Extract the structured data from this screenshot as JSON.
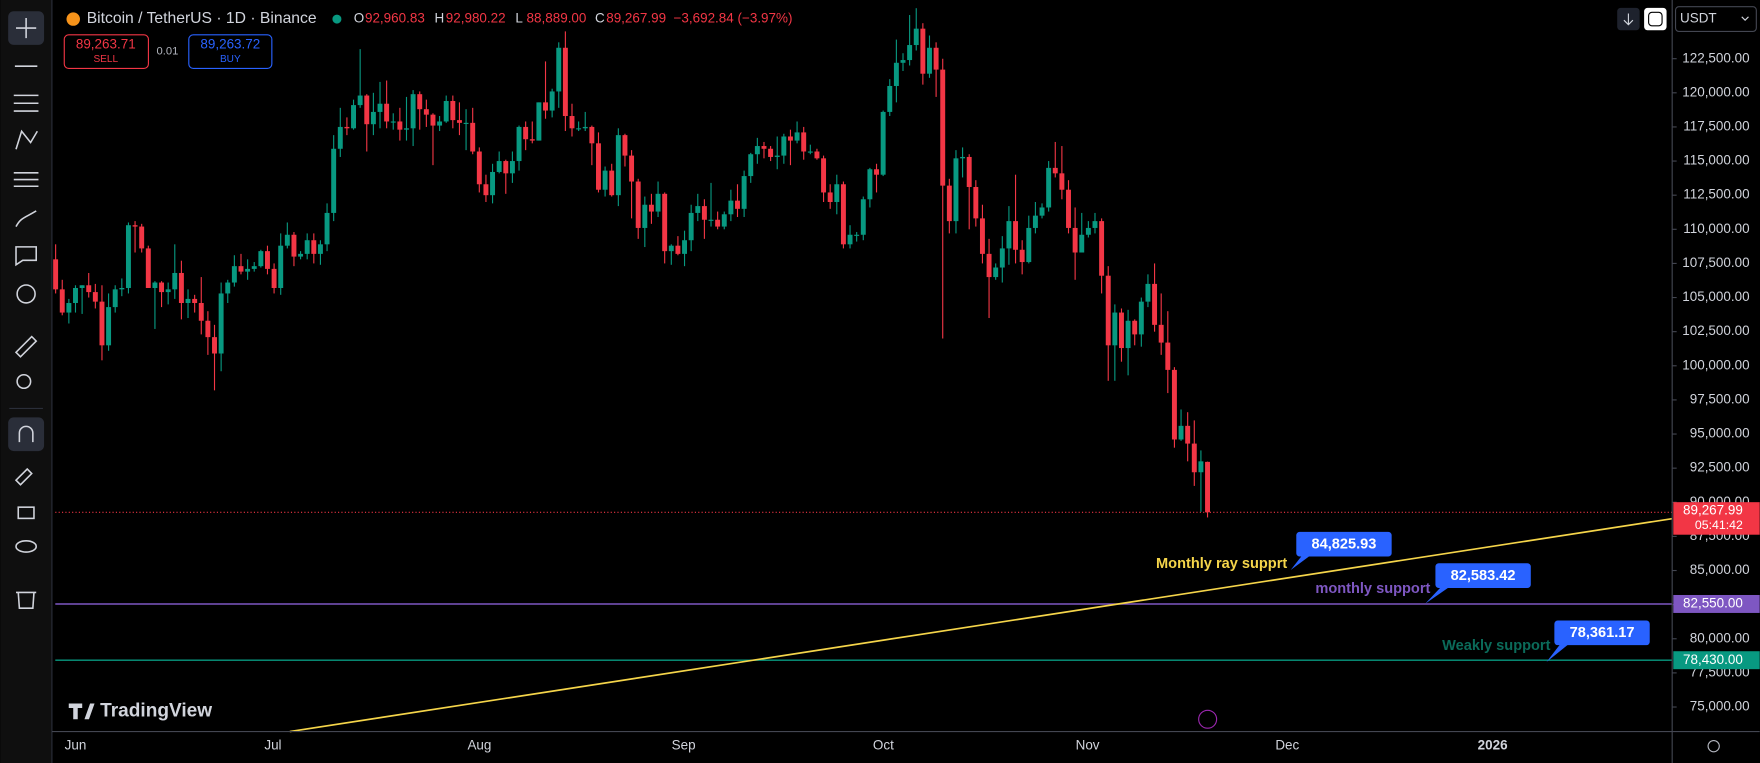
{
  "header": {
    "symbol": "Bitcoin / TetherUS · 1D · Binance",
    "ohlc": [
      {
        "key": "O",
        "value": "92,960.83"
      },
      {
        "key": "H",
        "value": "92,980.22"
      },
      {
        "key": "L",
        "value": "88,889.00"
      },
      {
        "key": "C",
        "value": "89,267.99"
      }
    ],
    "change": "−3,692.84 (−3.97%)",
    "sell_price": "89,263.71",
    "sell": "SELL",
    "spread": "0.01",
    "buy_price": "89,263.72",
    "buy": "BUY",
    "currency": "USDT",
    "logo": "TradingView"
  },
  "chart_data": {
    "type": "candlestick",
    "up_color": "#089981",
    "down_color": "#f23645",
    "x_labels": [
      "Jun",
      "Jul",
      "Aug",
      "Sep",
      "Oct",
      "Nov",
      "Dec",
      "2026"
    ],
    "ylim": [
      73200,
      126800
    ],
    "yticks": [
      {
        "value": 75000,
        "label": "75,000.00"
      },
      {
        "value": 77500,
        "label": "77,500.00"
      },
      {
        "value": 80000,
        "label": "80,000.00"
      },
      {
        "value": 82500,
        "label": "82,500.00"
      },
      {
        "value": 85000,
        "label": "85,000.00"
      },
      {
        "value": 87500,
        "label": "87,500.00"
      },
      {
        "value": 90000,
        "label": "90,000.00"
      },
      {
        "value": 92500,
        "label": "92,500.00"
      },
      {
        "value": 95000,
        "label": "95,000.00"
      },
      {
        "value": 97500,
        "label": "97,500.00"
      },
      {
        "value": 100000,
        "label": "100,000.00"
      },
      {
        "value": 102500,
        "label": "102,500.00"
      },
      {
        "value": 105000,
        "label": "105,000.00"
      },
      {
        "value": 107500,
        "label": "107,500.00"
      },
      {
        "value": 110000,
        "label": "110,000.00"
      },
      {
        "value": 112500,
        "label": "112,500.00"
      },
      {
        "value": 115000,
        "label": "115,000.00"
      },
      {
        "value": 117500,
        "label": "117,500.00"
      },
      {
        "value": 120000,
        "label": "120,000.00"
      },
      {
        "value": 122500,
        "label": "122,500.00"
      }
    ],
    "current_price": {
      "value": 89267.99,
      "label": "89,267.99",
      "countdown": "05:41:42"
    },
    "levels": [
      {
        "value": 82550,
        "label": "82,550.00",
        "color": "#7e57c2"
      },
      {
        "value": 78430,
        "label": "78,430.00",
        "color": "#089981"
      }
    ],
    "ray": {
      "color": "#f5d54a",
      "start": 73200,
      "end": 88800
    },
    "annotations": [
      {
        "text": "Monthly ray supprt",
        "price": "84,825.93",
        "color": "#f5d54a"
      },
      {
        "text": "monthly support",
        "price": "82,583.42",
        "color": "#7e57c2"
      },
      {
        "text": "Weakly support",
        "price": "78,361.17",
        "color": "#0b6b5a"
      }
    ],
    "candles": [
      [
        107800,
        108900,
        105300,
        105600
      ],
      [
        105600,
        106300,
        103700,
        103900
      ],
      [
        103900,
        104900,
        103100,
        104600
      ],
      [
        104600,
        105900,
        103900,
        105700
      ],
      [
        105700,
        105900,
        103800,
        105900
      ],
      [
        105900,
        106800,
        105000,
        105400
      ],
      [
        105400,
        106000,
        104200,
        104700
      ],
      [
        104700,
        105900,
        100400,
        101500
      ],
      [
        101500,
        105300,
        101100,
        104300
      ],
      [
        104300,
        105900,
        103900,
        105600
      ],
      [
        105600,
        106400,
        105100,
        105700
      ],
      [
        105700,
        110500,
        105300,
        110300
      ],
      [
        110300,
        110600,
        108300,
        110200
      ],
      [
        110200,
        110400,
        108300,
        108600
      ],
      [
        108600,
        108800,
        105700,
        105700
      ],
      [
        105700,
        106200,
        102700,
        106100
      ],
      [
        106100,
        106200,
        104300,
        105400
      ],
      [
        105400,
        106100,
        104500,
        105600
      ],
      [
        105600,
        108900,
        104900,
        106800
      ],
      [
        106800,
        107700,
        103400,
        104600
      ],
      [
        104600,
        105600,
        103500,
        104900
      ],
      [
        104900,
        105200,
        103900,
        104600
      ],
      [
        104600,
        106500,
        102300,
        103300
      ],
      [
        103300,
        104000,
        100800,
        102100
      ],
      [
        102100,
        103000,
        98200,
        100900
      ],
      [
        100900,
        106100,
        99600,
        105300
      ],
      [
        105300,
        106300,
        104600,
        106100
      ],
      [
        106100,
        108100,
        105800,
        107300
      ],
      [
        107300,
        108200,
        106700,
        106900
      ],
      [
        106900,
        107800,
        106300,
        107100
      ],
      [
        107100,
        107600,
        106900,
        107300
      ],
      [
        107300,
        108500,
        107200,
        108400
      ],
      [
        108400,
        108800,
        106700,
        107100
      ],
      [
        107100,
        107500,
        105300,
        105700
      ],
      [
        105700,
        109700,
        105200,
        108800
      ],
      [
        108800,
        110500,
        108600,
        109600
      ],
      [
        109600,
        109800,
        107300,
        108000
      ],
      [
        108000,
        108400,
        107800,
        108200
      ],
      [
        108200,
        109700,
        107800,
        109200
      ],
      [
        109200,
        109700,
        107500,
        108200
      ],
      [
        108200,
        109200,
        107400,
        108900
      ],
      [
        108900,
        111900,
        108400,
        111200
      ],
      [
        111200,
        116900,
        110600,
        115900
      ],
      [
        115900,
        118900,
        115300,
        117500
      ],
      [
        117500,
        118200,
        116900,
        117400
      ],
      [
        117400,
        119500,
        117300,
        119100
      ],
      [
        119100,
        123200,
        118900,
        119800
      ],
      [
        119800,
        119900,
        115700,
        117700
      ],
      [
        117700,
        120000,
        116900,
        118600
      ],
      [
        118600,
        120800,
        117400,
        119200
      ],
      [
        119200,
        120900,
        117400,
        117900
      ],
      [
        117900,
        118500,
        117300,
        117900
      ],
      [
        117900,
        118900,
        116500,
        117300
      ],
      [
        117300,
        119700,
        116500,
        117400
      ],
      [
        117400,
        120200,
        116100,
        119900
      ],
      [
        119900,
        120100,
        117300,
        118800
      ],
      [
        118800,
        119500,
        117500,
        118400
      ],
      [
        118400,
        118500,
        114700,
        117600
      ],
      [
        117600,
        118300,
        117200,
        117900
      ],
      [
        117900,
        119800,
        117800,
        119400
      ],
      [
        119400,
        119800,
        117400,
        118000
      ],
      [
        118000,
        119300,
        116900,
        117800
      ],
      [
        117800,
        118800,
        115800,
        117800
      ],
      [
        117800,
        118900,
        115500,
        115700
      ],
      [
        115700,
        116000,
        112700,
        113300
      ],
      [
        113300,
        114000,
        112000,
        112500
      ],
      [
        112500,
        114800,
        111900,
        114200
      ],
      [
        114200,
        115700,
        114100,
        115000
      ],
      [
        115000,
        115100,
        112600,
        114100
      ],
      [
        114100,
        115700,
        113400,
        115000
      ],
      [
        115000,
        117600,
        114300,
        117500
      ],
      [
        117500,
        117900,
        115800,
        116600
      ],
      [
        116600,
        117900,
        116300,
        116500
      ],
      [
        116500,
        119300,
        116500,
        119300
      ],
      [
        119300,
        122300,
        118100,
        118700
      ],
      [
        118700,
        120300,
        118200,
        120100
      ],
      [
        120100,
        123700,
        118900,
        123300
      ],
      [
        123300,
        124500,
        117200,
        118300
      ],
      [
        118300,
        119200,
        116800,
        117400
      ],
      [
        117400,
        117900,
        117200,
        117400
      ],
      [
        117400,
        118600,
        117200,
        117500
      ],
      [
        117500,
        117600,
        114700,
        116300
      ],
      [
        116300,
        117100,
        112700,
        112900
      ],
      [
        112900,
        114600,
        112400,
        114300
      ],
      [
        114300,
        114800,
        112400,
        112500
      ],
      [
        112500,
        117400,
        111700,
        116900
      ],
      [
        116900,
        117000,
        114600,
        115400
      ],
      [
        115400,
        115800,
        110800,
        113500
      ],
      [
        113500,
        113700,
        109300,
        110100
      ],
      [
        110100,
        112400,
        108700,
        111800
      ],
      [
        111800,
        112600,
        110400,
        111300
      ],
      [
        111300,
        113500,
        110900,
        112600
      ],
      [
        112600,
        112700,
        107500,
        108400
      ],
      [
        108400,
        108900,
        107400,
        108800
      ],
      [
        108800,
        109500,
        108100,
        108200
      ],
      [
        108200,
        109900,
        107300,
        109200
      ],
      [
        109200,
        111800,
        108400,
        111200
      ],
      [
        111200,
        112600,
        110600,
        111700
      ],
      [
        111700,
        112200,
        109300,
        110700
      ],
      [
        110700,
        113400,
        110200,
        110700
      ],
      [
        110700,
        111300,
        110000,
        110200
      ],
      [
        110200,
        111300,
        110000,
        111100
      ],
      [
        111100,
        112900,
        110600,
        112100
      ],
      [
        112100,
        113300,
        110900,
        111500
      ],
      [
        111500,
        114300,
        110900,
        113900
      ],
      [
        113900,
        115600,
        113400,
        115500
      ],
      [
        115500,
        116700,
        114800,
        116100
      ],
      [
        116100,
        116400,
        115200,
        115900
      ],
      [
        115900,
        116100,
        115000,
        115300
      ],
      [
        115300,
        116800,
        114400,
        115400
      ],
      [
        115400,
        117000,
        114800,
        116800
      ],
      [
        116800,
        117300,
        114700,
        116500
      ],
      [
        116500,
        117900,
        116300,
        117100
      ],
      [
        117100,
        117500,
        115100,
        115700
      ],
      [
        115700,
        116200,
        115500,
        115700
      ],
      [
        115700,
        115900,
        115100,
        115200
      ],
      [
        115200,
        115400,
        112000,
        112700
      ],
      [
        112700,
        113300,
        111500,
        112000
      ],
      [
        112000,
        114000,
        111100,
        113300
      ],
      [
        113300,
        113500,
        108600,
        108900
      ],
      [
        108900,
        110300,
        108600,
        109600
      ],
      [
        109600,
        109800,
        109100,
        109600
      ],
      [
        109600,
        112400,
        109200,
        112200
      ],
      [
        112200,
        114500,
        111600,
        114400
      ],
      [
        114400,
        114800,
        112700,
        114000
      ],
      [
        114000,
        118700,
        113900,
        118600
      ],
      [
        118600,
        121000,
        118300,
        120500
      ],
      [
        120500,
        123900,
        119300,
        122200
      ],
      [
        122200,
        122900,
        121600,
        122400
      ],
      [
        122400,
        125700,
        122000,
        123500
      ],
      [
        123500,
        126200,
        123100,
        124700
      ],
      [
        124700,
        125100,
        120600,
        121400
      ],
      [
        121400,
        124200,
        121100,
        123300
      ],
      [
        123300,
        123700,
        119700,
        121700
      ],
      [
        121700,
        122500,
        102000,
        113200
      ],
      [
        113200,
        113700,
        109700,
        110600
      ],
      [
        110600,
        115800,
        109700,
        115200
      ],
      [
        115200,
        116000,
        113800,
        115300
      ],
      [
        115300,
        115500,
        110000,
        113100
      ],
      [
        113100,
        113600,
        110200,
        110800
      ],
      [
        110800,
        111800,
        107500,
        108200
      ],
      [
        108200,
        109300,
        103500,
        106500
      ],
      [
        106500,
        107500,
        106300,
        107200
      ],
      [
        107200,
        109500,
        106100,
        108600
      ],
      [
        108600,
        111700,
        107400,
        110600
      ],
      [
        110600,
        114000,
        107500,
        108500
      ],
      [
        108500,
        109200,
        106700,
        107600
      ],
      [
        107600,
        111000,
        107500,
        110100
      ],
      [
        110100,
        112000,
        109700,
        111000
      ],
      [
        111000,
        111900,
        110800,
        111600
      ],
      [
        111600,
        115000,
        111300,
        114500
      ],
      [
        114500,
        116400,
        113800,
        114100
      ],
      [
        114100,
        116100,
        112200,
        112900
      ],
      [
        112900,
        113600,
        109700,
        110100
      ],
      [
        110100,
        111600,
        106300,
        108300
      ],
      [
        108300,
        111200,
        108300,
        109600
      ],
      [
        109600,
        110600,
        109400,
        110100
      ],
      [
        110100,
        111200,
        109700,
        110600
      ],
      [
        110600,
        110800,
        105300,
        106600
      ],
      [
        106600,
        107300,
        98900,
        101500
      ],
      [
        101500,
        104500,
        98900,
        103900
      ],
      [
        103900,
        104200,
        100300,
        101300
      ],
      [
        101300,
        104100,
        99300,
        103300
      ],
      [
        103300,
        103400,
        101500,
        102300
      ],
      [
        102300,
        105000,
        101400,
        104700
      ],
      [
        104700,
        106700,
        104300,
        106000
      ],
      [
        106000,
        107500,
        102500,
        103000
      ],
      [
        103000,
        105300,
        100800,
        101700
      ],
      [
        101700,
        104000,
        98000,
        99700
      ],
      [
        99700,
        99900,
        94000,
        94600
      ],
      [
        94600,
        96800,
        94500,
        95600
      ],
      [
        95600,
        96600,
        93000,
        94300
      ],
      [
        94300,
        96000,
        91200,
        92200
      ],
      [
        92200,
        93800,
        89300,
        93000
      ],
      [
        92960.83,
        92980.22,
        88889,
        89267.99
      ]
    ]
  }
}
